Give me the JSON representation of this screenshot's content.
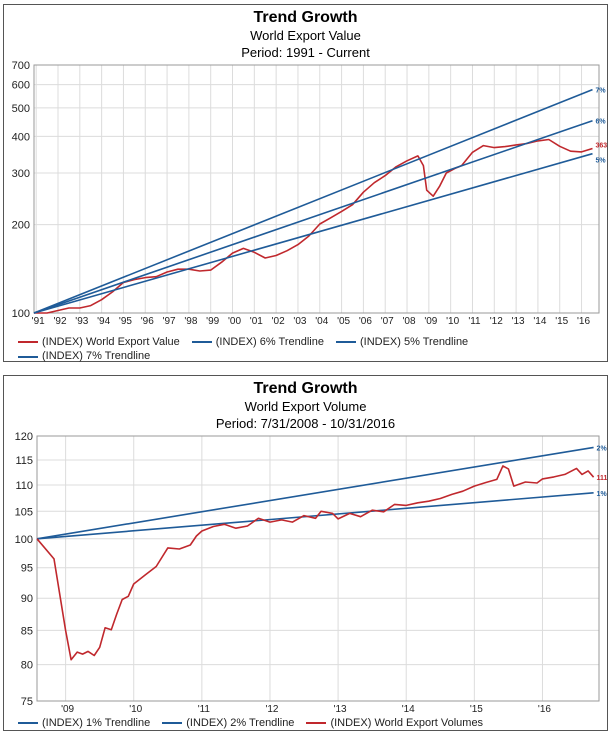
{
  "chart_data": [
    {
      "type": "line",
      "title": "Trend Growth",
      "subtitle": "World Export Value",
      "period": "Period: 1991 - Current",
      "yscale": "log",
      "ylim": [
        100,
        700
      ],
      "yticks": [
        100,
        200,
        300,
        400,
        500,
        600,
        700
      ],
      "xlim": [
        1990.9,
        2016.8
      ],
      "xticks": [
        {
          "x": 1991,
          "label": "'91"
        },
        {
          "x": 1992,
          "label": "'92"
        },
        {
          "x": 1993,
          "label": "'93"
        },
        {
          "x": 1994,
          "label": "'94"
        },
        {
          "x": 1995,
          "label": "'95"
        },
        {
          "x": 1996,
          "label": "'96"
        },
        {
          "x": 1997,
          "label": "'97"
        },
        {
          "x": 1998,
          "label": "'98"
        },
        {
          "x": 1999,
          "label": "'99"
        },
        {
          "x": 2000,
          "label": "'00"
        },
        {
          "x": 2001,
          "label": "'01"
        },
        {
          "x": 2002,
          "label": "'02"
        },
        {
          "x": 2003,
          "label": "'03"
        },
        {
          "x": 2004,
          "label": "'04"
        },
        {
          "x": 2005,
          "label": "'05"
        },
        {
          "x": 2006,
          "label": "'06"
        },
        {
          "x": 2007,
          "label": "'07"
        },
        {
          "x": 2008,
          "label": "'08"
        },
        {
          "x": 2009,
          "label": "'09"
        },
        {
          "x": 2010,
          "label": "'10"
        },
        {
          "x": 2011,
          "label": "'11"
        },
        {
          "x": 2012,
          "label": "'12"
        },
        {
          "x": 2013,
          "label": "'13"
        },
        {
          "x": 2014,
          "label": "'14"
        },
        {
          "x": 2015,
          "label": "'15"
        },
        {
          "x": 2016,
          "label": "'16"
        }
      ],
      "grid": true,
      "legend_position": "bottom",
      "series": [
        {
          "name": "(INDEX) World Export Value",
          "color": "#c0282d",
          "end_label": "363.49",
          "points": [
            [
              1990.9,
              100
            ],
            [
              1991.5,
              100
            ],
            [
              1992.0,
              102
            ],
            [
              1992.5,
              104
            ],
            [
              1993.0,
              104
            ],
            [
              1993.5,
              106
            ],
            [
              1994.0,
              111
            ],
            [
              1994.5,
              118
            ],
            [
              1995.0,
              127
            ],
            [
              1995.5,
              130
            ],
            [
              1996.0,
              132
            ],
            [
              1996.5,
              133
            ],
            [
              1997.0,
              138
            ],
            [
              1997.5,
              141
            ],
            [
              1998.0,
              141
            ],
            [
              1998.5,
              139
            ],
            [
              1999.0,
              140
            ],
            [
              1999.5,
              149
            ],
            [
              2000.0,
              160
            ],
            [
              2000.5,
              166
            ],
            [
              2001.0,
              161
            ],
            [
              2001.5,
              154
            ],
            [
              2002.0,
              157
            ],
            [
              2002.5,
              163
            ],
            [
              2003.0,
              171
            ],
            [
              2003.5,
              183
            ],
            [
              2004.0,
              201
            ],
            [
              2004.5,
              211
            ],
            [
              2005.0,
              222
            ],
            [
              2005.5,
              234
            ],
            [
              2006.0,
              258
            ],
            [
              2006.5,
              278
            ],
            [
              2007.0,
              294
            ],
            [
              2007.5,
              315
            ],
            [
              2008.0,
              330
            ],
            [
              2008.5,
              343
            ],
            [
              2008.75,
              318
            ],
            [
              2008.9,
              262
            ],
            [
              2009.2,
              250
            ],
            [
              2009.5,
              271
            ],
            [
              2009.8,
              300
            ],
            [
              2010.2,
              311
            ],
            [
              2010.5,
              318
            ],
            [
              2011.0,
              353
            ],
            [
              2011.5,
              372
            ],
            [
              2012.0,
              366
            ],
            [
              2012.5,
              369
            ],
            [
              2013.0,
              374
            ],
            [
              2013.5,
              378
            ],
            [
              2014.0,
              386
            ],
            [
              2014.5,
              390
            ],
            [
              2015.0,
              370
            ],
            [
              2015.5,
              356
            ],
            [
              2016.0,
              354
            ],
            [
              2016.5,
              363.49
            ]
          ]
        },
        {
          "name": "(INDEX) 6% Trendline",
          "color": "#1f5b98",
          "end_label": "6%",
          "points": [
            [
              1990.9,
              100
            ],
            [
              2016.5,
              452
            ]
          ]
        },
        {
          "name": "(INDEX) 5% Trendline",
          "color": "#1f5b98",
          "end_label": "5%",
          "points": [
            [
              1990.9,
              100
            ],
            [
              2016.5,
              349
            ]
          ]
        },
        {
          "name": "(INDEX) 7% Trendline",
          "color": "#1f5b98",
          "end_label": "7%",
          "points": [
            [
              1990.9,
              100
            ],
            [
              2016.5,
              577
            ]
          ]
        }
      ],
      "legend_rows": [
        [
          0,
          1,
          2
        ],
        [
          3
        ]
      ]
    },
    {
      "type": "line",
      "title": "Trend Growth",
      "subtitle": "World Export Volume",
      "period": "Period: 7/31/2008 - 10/31/2016",
      "yscale": "log",
      "ylim": [
        75,
        120
      ],
      "yticks": [
        75,
        80,
        85,
        90,
        95,
        100,
        105,
        110,
        115,
        120
      ],
      "xlim": [
        2008.58,
        2016.83
      ],
      "xticks": [
        {
          "x": 2009,
          "label": "'09"
        },
        {
          "x": 2010,
          "label": "'10"
        },
        {
          "x": 2011,
          "label": "'11"
        },
        {
          "x": 2012,
          "label": "'12"
        },
        {
          "x": 2013,
          "label": "'13"
        },
        {
          "x": 2014,
          "label": "'14"
        },
        {
          "x": 2015,
          "label": "'15"
        },
        {
          "x": 2016,
          "label": "'16"
        }
      ],
      "grid": true,
      "legend_position": "bottom",
      "series": [
        {
          "name": "(INDEX) 1% Trendline",
          "color": "#1f5b98",
          "end_label": "1%",
          "points": [
            [
              2008.58,
              100
            ],
            [
              2016.75,
              108.5
            ]
          ]
        },
        {
          "name": "(INDEX) 2% Trendline",
          "color": "#1f5b98",
          "end_label": "2%",
          "points": [
            [
              2008.58,
              100
            ],
            [
              2016.75,
              117.6
            ]
          ]
        },
        {
          "name": "(INDEX) World Export Volumes",
          "color": "#c0282d",
          "end_label": "111.54",
          "points": [
            [
              2008.58,
              100
            ],
            [
              2008.83,
              96.5
            ],
            [
              2009.0,
              85
            ],
            [
              2009.08,
              80.7
            ],
            [
              2009.17,
              81.8
            ],
            [
              2009.25,
              81.5
            ],
            [
              2009.33,
              81.9
            ],
            [
              2009.42,
              81.3
            ],
            [
              2009.5,
              82.5
            ],
            [
              2009.58,
              85.4
            ],
            [
              2009.67,
              85.1
            ],
            [
              2009.75,
              87.5
            ],
            [
              2009.83,
              89.8
            ],
            [
              2009.92,
              90.3
            ],
            [
              2010.0,
              92.3
            ],
            [
              2010.17,
              93.8
            ],
            [
              2010.33,
              95.2
            ],
            [
              2010.5,
              98.4
            ],
            [
              2010.67,
              98.2
            ],
            [
              2010.83,
              98.9
            ],
            [
              2010.92,
              100.5
            ],
            [
              2011.0,
              101.4
            ],
            [
              2011.17,
              102.2
            ],
            [
              2011.33,
              102.6
            ],
            [
              2011.5,
              101.9
            ],
            [
              2011.67,
              102.3
            ],
            [
              2011.83,
              103.7
            ],
            [
              2012.0,
              103.0
            ],
            [
              2012.17,
              103.4
            ],
            [
              2012.33,
              103.0
            ],
            [
              2012.5,
              104.2
            ],
            [
              2012.67,
              103.7
            ],
            [
              2012.75,
              105.0
            ],
            [
              2012.92,
              104.6
            ],
            [
              2013.0,
              103.6
            ],
            [
              2013.17,
              104.6
            ],
            [
              2013.33,
              104.0
            ],
            [
              2013.5,
              105.2
            ],
            [
              2013.67,
              104.9
            ],
            [
              2013.83,
              106.3
            ],
            [
              2014.0,
              106.1
            ],
            [
              2014.17,
              106.6
            ],
            [
              2014.33,
              106.9
            ],
            [
              2014.5,
              107.4
            ],
            [
              2014.67,
              108.2
            ],
            [
              2014.83,
              108.8
            ],
            [
              2015.0,
              109.8
            ],
            [
              2015.17,
              110.5
            ],
            [
              2015.33,
              111.1
            ],
            [
              2015.42,
              113.8
            ],
            [
              2015.5,
              113.2
            ],
            [
              2015.58,
              109.8
            ],
            [
              2015.75,
              110.6
            ],
            [
              2015.92,
              110.4
            ],
            [
              2016.0,
              111.2
            ],
            [
              2016.17,
              111.6
            ],
            [
              2016.33,
              112.1
            ],
            [
              2016.5,
              113.3
            ],
            [
              2016.58,
              112.1
            ],
            [
              2016.67,
              112.8
            ],
            [
              2016.75,
              111.54
            ]
          ]
        }
      ],
      "legend_rows": [
        [
          0,
          1,
          2
        ]
      ]
    }
  ]
}
